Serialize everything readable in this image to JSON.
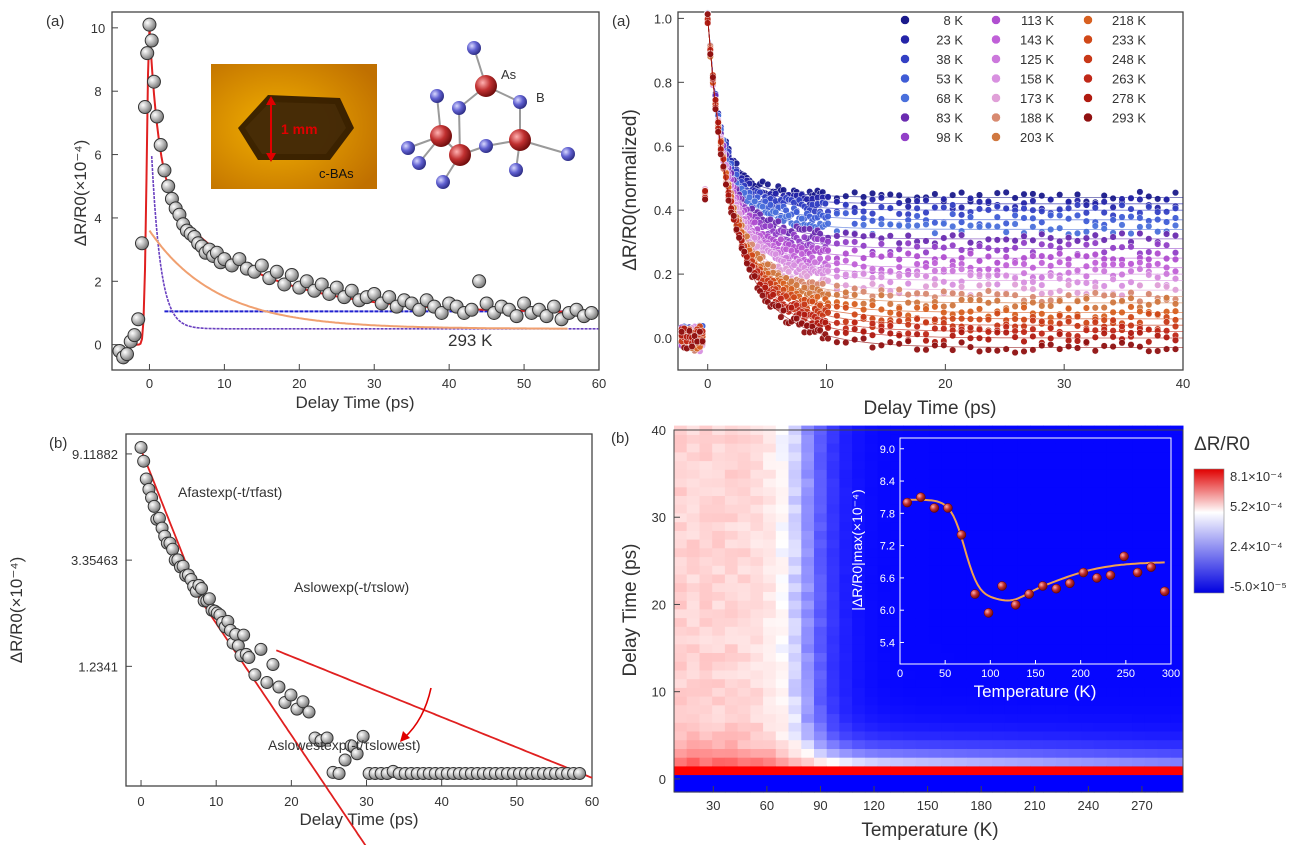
{
  "chart_data": [
    {
      "id": "a-left",
      "type": "scatter",
      "panel_label": "(a)",
      "xlabel": "Delay Time (ps)",
      "ylabel": "ΔR/R0(×10⁻⁴)",
      "xlim": [
        -5,
        60
      ],
      "ylim": [
        -0.8,
        10.5
      ],
      "xticks": [
        "0",
        "10",
        "20",
        "30",
        "40",
        "50",
        "60"
      ],
      "yticks": [
        "0",
        "2",
        "4",
        "6",
        "8",
        "10"
      ],
      "annotation": "293 K",
      "inset_photo_labels": [
        "1 mm",
        "c-BAs"
      ],
      "structure_labels": [
        "As",
        "B"
      ],
      "markers": {
        "x": [
          -4,
          -3.5,
          -3,
          -2.5,
          -2,
          -1.5,
          -1,
          -0.6,
          -0.3,
          0,
          0.3,
          0.6,
          1,
          1.5,
          2,
          2.5,
          3,
          3.5,
          4,
          4.5,
          5,
          5.5,
          6,
          6.5,
          7,
          7.5,
          8,
          8.5,
          9,
          9.5,
          10,
          11,
          12,
          13,
          14,
          15,
          16,
          17,
          18,
          19,
          20,
          21,
          22,
          23,
          24,
          25,
          26,
          27,
          28,
          29,
          30,
          31,
          32,
          33,
          34,
          35,
          36,
          37,
          38,
          39,
          40,
          41,
          42,
          43,
          44,
          45,
          46,
          47,
          48,
          49,
          50,
          51,
          52,
          53,
          54,
          55,
          56,
          57,
          58,
          59
        ],
        "y": [
          -0.2,
          -0.4,
          -0.3,
          0.1,
          0.3,
          0.8,
          3.2,
          7.5,
          9.2,
          10.1,
          9.6,
          8.3,
          7.2,
          6.3,
          5.5,
          5.0,
          4.6,
          4.3,
          4.1,
          3.8,
          3.6,
          3.5,
          3.4,
          3.2,
          3.1,
          2.9,
          3.0,
          2.8,
          2.9,
          2.6,
          2.7,
          2.5,
          2.7,
          2.4,
          2.3,
          2.5,
          2.1,
          2.3,
          1.9,
          2.2,
          1.8,
          2.0,
          1.7,
          1.9,
          1.6,
          1.8,
          1.5,
          1.7,
          1.4,
          1.5,
          1.6,
          1.3,
          1.5,
          1.2,
          1.4,
          1.3,
          1.1,
          1.4,
          1.2,
          1.0,
          1.3,
          1.2,
          1.0,
          1.1,
          2.0,
          1.3,
          1.0,
          1.2,
          1.1,
          0.9,
          1.3,
          1.0,
          1.1,
          0.9,
          1.2,
          0.8,
          1.0,
          1.1,
          0.9,
          1.0
        ]
      },
      "fit_total": "red",
      "fit_fast": "purple",
      "fit_slow": "orange",
      "fit_const": "blue"
    },
    {
      "id": "b-left",
      "type": "scatter",
      "panel_label": "(b)",
      "xlabel": "Delay Time (ps)",
      "ylabel": "ΔR/R0(×10⁻⁴)",
      "xlim": [
        -2,
        60
      ],
      "ylim_log": [
        0.4,
        11
      ],
      "xticks": [
        "0",
        "10",
        "20",
        "30",
        "40",
        "50",
        "60"
      ],
      "yticks": [
        "9.11882",
        "3.35463",
        "1.2341"
      ],
      "ytick_values": [
        9.11882,
        3.35463,
        1.2341
      ],
      "annotations": [
        "Afastexp(-t/τfast)",
        "Aslowexp(-t/τslow)",
        "Aslowestexp(-t/τslowest)"
      ]
    },
    {
      "id": "a-right",
      "type": "scatter",
      "panel_label": "(a)",
      "xlabel": "Delay Time (ps)",
      "ylabel": "ΔR/R0(normalized)",
      "xlim": [
        -2.5,
        40
      ],
      "ylim": [
        -0.1,
        1.02
      ],
      "xticks": [
        "0",
        "10",
        "20",
        "30",
        "40"
      ],
      "yticks": [
        "0.0",
        "0.2",
        "0.4",
        "0.6",
        "0.8",
        "1.0"
      ],
      "series": [
        {
          "name": "8 K",
          "color": "#1a1a8c",
          "plateau": 0.44
        },
        {
          "name": "23 K",
          "color": "#2424a8",
          "plateau": 0.42
        },
        {
          "name": "38 K",
          "color": "#3340c4",
          "plateau": 0.4
        },
        {
          "name": "53 K",
          "color": "#3f5cd6",
          "plateau": 0.37
        },
        {
          "name": "68 K",
          "color": "#4a70dc",
          "plateau": 0.34
        },
        {
          "name": "83 K",
          "color": "#6a2cb0",
          "plateau": 0.31
        },
        {
          "name": "98 K",
          "color": "#9240c8",
          "plateau": 0.28
        },
        {
          "name": "113 K",
          "color": "#b04ed0",
          "plateau": 0.25
        },
        {
          "name": "143 K",
          "color": "#c060d8",
          "plateau": 0.22
        },
        {
          "name": "125 K",
          "color": "#cc78dc",
          "plateau": 0.2
        },
        {
          "name": "158 K",
          "color": "#d890e0",
          "plateau": 0.18
        },
        {
          "name": "173 K",
          "color": "#e0a0d8",
          "plateau": 0.15
        },
        {
          "name": "188 K",
          "color": "#d88a70",
          "plateau": 0.13
        },
        {
          "name": "203 K",
          "color": "#d07840",
          "plateau": 0.11
        },
        {
          "name": "218 K",
          "color": "#d86020",
          "plateau": 0.08
        },
        {
          "name": "233 K",
          "color": "#d04818",
          "plateau": 0.06
        },
        {
          "name": "248 K",
          "color": "#c83818",
          "plateau": 0.04
        },
        {
          "name": "263 K",
          "color": "#c02818",
          "plateau": 0.02
        },
        {
          "name": "278 K",
          "color": "#b01a10",
          "plateau": 0.0
        },
        {
          "name": "293 K",
          "color": "#901010",
          "plateau": -0.03
        }
      ]
    },
    {
      "id": "b-right",
      "type": "heatmap",
      "panel_label": "(b)",
      "xlabel": "Temperature (K)",
      "ylabel": "Delay Time (ps)",
      "xlim": [
        8,
        293
      ],
      "ylim": [
        -1.5,
        40
      ],
      "xticks": [
        "30",
        "60",
        "90",
        "120",
        "150",
        "180",
        "210",
        "240",
        "270"
      ],
      "yticks": [
        "0",
        "10",
        "20",
        "30",
        "40"
      ],
      "colorbar_title": "ΔR/R0",
      "colorbar_ticks": [
        "8.1×10⁻⁴",
        "5.2×10⁻⁴",
        "2.4×10⁻⁴",
        "-5.0×10⁻⁵"
      ],
      "inset": {
        "xlabel": "Temperature (K)",
        "ylabel": "|ΔR/R0|max(×10⁻⁴)",
        "xlim": [
          0,
          300
        ],
        "ylim": [
          5.0,
          9.2
        ],
        "xticks": [
          "0",
          "50",
          "100",
          "150",
          "200",
          "250",
          "300"
        ],
        "yticks": [
          "5.4",
          "6.0",
          "6.6",
          "7.2",
          "7.8",
          "8.4",
          "9.0"
        ],
        "x": [
          8,
          23,
          38,
          53,
          68,
          83,
          98,
          113,
          128,
          143,
          158,
          173,
          188,
          203,
          218,
          233,
          248,
          263,
          278,
          293
        ],
        "y": [
          8.0,
          8.1,
          7.9,
          7.9,
          7.4,
          6.3,
          5.95,
          6.45,
          6.1,
          6.3,
          6.45,
          6.4,
          6.5,
          6.7,
          6.6,
          6.65,
          7.0,
          6.7,
          6.8,
          6.35
        ]
      }
    }
  ]
}
